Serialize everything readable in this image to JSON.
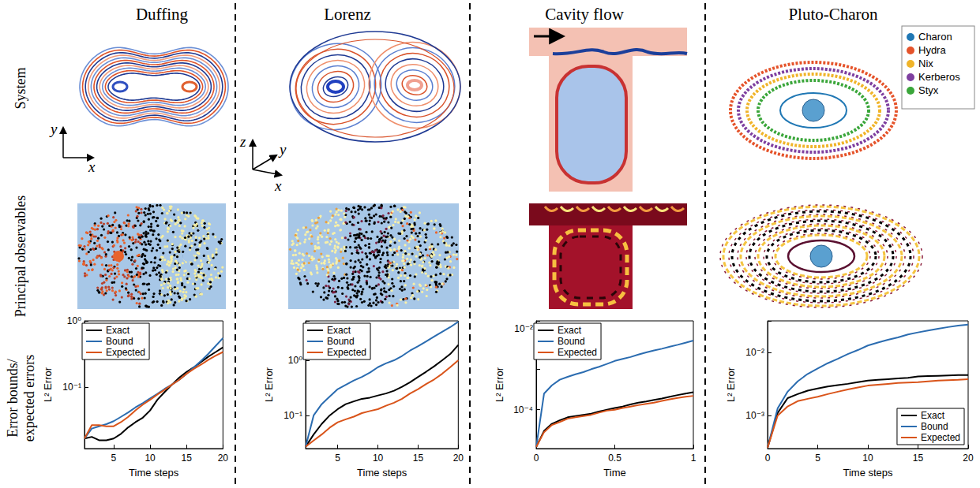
{
  "columns": [
    "Duffing",
    "Lorenz",
    "Cavity flow",
    "Pluto-Charon"
  ],
  "rows": [
    "System",
    "Principal observables",
    "Error bounds/ expected errors"
  ],
  "system_axes": {
    "Duffing": [
      "x",
      "y"
    ],
    "Lorenz": [
      "x",
      "y",
      "z"
    ]
  },
  "pluto_legend": [
    {
      "name": "Charon",
      "color": "#1f77b4"
    },
    {
      "name": "Hydra",
      "color": "#e5532a"
    },
    {
      "name": "Nix",
      "color": "#f0b429"
    },
    {
      "name": "Kerberos",
      "color": "#7e3fa0"
    },
    {
      "name": "Styx",
      "color": "#3aa63a"
    }
  ],
  "chart_data": [
    {
      "type": "line",
      "log": "y",
      "grid": false,
      "legend": "upper left",
      "xlabel": "Time steps",
      "ylabel": "L² Error",
      "x": [
        1,
        2,
        3,
        4,
        5,
        6,
        7,
        8,
        9,
        10,
        11,
        12,
        13,
        14,
        15,
        16,
        17,
        18,
        19,
        20
      ],
      "xlim": [
        1,
        20
      ],
      "xticks": [
        5,
        10,
        15,
        20
      ],
      "ylim": [
        0.012,
        1
      ],
      "yticks": [
        {
          "value": 0.1,
          "label": "10⁻¹"
        },
        {
          "value": 1,
          "label": "10⁰"
        }
      ],
      "series": [
        {
          "name": "Exact",
          "color": "#000000",
          "values": [
            0.017,
            0.018,
            0.016,
            0.016,
            0.017,
            0.02,
            0.025,
            0.03,
            0.035,
            0.045,
            0.065,
            0.085,
            0.11,
            0.14,
            0.17,
            0.2,
            0.24,
            0.29,
            0.34,
            0.4
          ]
        },
        {
          "name": "Bound",
          "color": "#2b6cb0",
          "values": [
            0.017,
            0.024,
            0.026,
            0.028,
            0.031,
            0.036,
            0.042,
            0.05,
            0.058,
            0.068,
            0.08,
            0.095,
            0.11,
            0.13,
            0.16,
            0.2,
            0.25,
            0.32,
            0.42,
            0.55
          ]
        },
        {
          "name": "Expected",
          "color": "#d9541a",
          "values": [
            0.017,
            0.027,
            0.027,
            0.026,
            0.026,
            0.03,
            0.036,
            0.045,
            0.055,
            0.065,
            0.078,
            0.092,
            0.11,
            0.13,
            0.16,
            0.19,
            0.22,
            0.26,
            0.3,
            0.34
          ]
        }
      ]
    },
    {
      "type": "line",
      "log": "y",
      "grid": false,
      "legend": "upper left",
      "xlabel": "Time steps",
      "ylabel": "L² Error",
      "x": [
        1,
        2,
        3,
        4,
        5,
        6,
        7,
        8,
        9,
        10,
        11,
        12,
        13,
        14,
        15,
        16,
        17,
        18,
        19,
        20
      ],
      "xlim": [
        1,
        20
      ],
      "xticks": [
        5,
        10,
        15,
        20
      ],
      "ylim": [
        0.025,
        5.2
      ],
      "yticks": [
        {
          "value": 0.1,
          "label": "10⁻¹"
        },
        {
          "value": 1,
          "label": "10⁰"
        }
      ],
      "series": [
        {
          "name": "Exact",
          "color": "#000000",
          "values": [
            0.027,
            0.045,
            0.07,
            0.1,
            0.13,
            0.16,
            0.18,
            0.2,
            0.21,
            0.23,
            0.25,
            0.28,
            0.33,
            0.4,
            0.5,
            0.62,
            0.78,
            1.0,
            1.3,
            1.9
          ]
        },
        {
          "name": "Bound",
          "color": "#2b6cb0",
          "values": [
            0.027,
            0.1,
            0.16,
            0.22,
            0.3,
            0.36,
            0.43,
            0.5,
            0.6,
            0.75,
            0.88,
            1.0,
            1.2,
            1.5,
            1.8,
            2.2,
            2.7,
            3.3,
            4.0,
            5.0
          ]
        },
        {
          "name": "Expected",
          "color": "#d9541a",
          "values": [
            0.027,
            0.035,
            0.045,
            0.06,
            0.075,
            0.085,
            0.095,
            0.11,
            0.12,
            0.13,
            0.15,
            0.17,
            0.2,
            0.25,
            0.3,
            0.37,
            0.45,
            0.57,
            0.75,
            1.0
          ]
        }
      ]
    },
    {
      "type": "line",
      "log": "y",
      "grid": false,
      "legend": "upper left",
      "xlabel": "Time",
      "ylabel": "L² Error",
      "x": [
        0,
        0.05,
        0.1,
        0.15,
        0.2,
        0.25,
        0.3,
        0.35,
        0.4,
        0.45,
        0.5,
        0.55,
        0.6,
        0.65,
        0.7,
        0.75,
        0.8,
        0.85,
        0.9,
        0.95,
        1
      ],
      "xlim": [
        0,
        1
      ],
      "xticks": [
        0,
        0.5,
        1
      ],
      "ylim": [
        1.1e-05,
        0.0156
      ],
      "yticks": [
        {
          "value": 0.0001,
          "label": "10⁻⁴"
        },
        {
          "value": 0.01,
          "label": "10⁻²"
        }
      ],
      "series": [
        {
          "name": "Exact",
          "color": "#000000",
          "values": [
            1.2e-05,
            3e-05,
            4.5e-05,
            5.5e-05,
            6.5e-05,
            7e-05,
            7.5e-05,
            8e-05,
            9e-05,
            0.0001,
            0.00011,
            0.00012,
            0.000135,
            0.00015,
            0.00016,
            0.000175,
            0.00019,
            0.00021,
            0.00023,
            0.00025,
            0.00027
          ]
        },
        {
          "name": "Bound",
          "color": "#2b6cb0",
          "values": [
            1.2e-05,
            0.00025,
            0.0004,
            0.00055,
            0.00065,
            0.00075,
            0.00085,
            0.001,
            0.00115,
            0.00135,
            0.0016,
            0.0018,
            0.002,
            0.0023,
            0.0026,
            0.0029,
            0.0032,
            0.0036,
            0.004,
            0.0045,
            0.0051
          ]
        },
        {
          "name": "Expected",
          "color": "#d9541a",
          "values": [
            1.2e-05,
            2.8e-05,
            4.2e-05,
            5e-05,
            6e-05,
            6.5e-05,
            7e-05,
            7.5e-05,
            8.5e-05,
            9.5e-05,
            0.0001,
            0.00011,
            0.00012,
            0.00013,
            0.00014,
            0.00015,
            0.000165,
            0.00018,
            0.000195,
            0.00021,
            0.00022
          ]
        }
      ]
    },
    {
      "type": "line",
      "log": "y",
      "grid": false,
      "legend": "lower right",
      "xlabel": "Time steps",
      "ylabel": "L² Error",
      "x": [
        0,
        1,
        2,
        3,
        4,
        5,
        6,
        7,
        8,
        9,
        10,
        11,
        12,
        13,
        14,
        15,
        16,
        17,
        18,
        19,
        20
      ],
      "xlim": [
        0,
        20
      ],
      "xticks": [
        0,
        5,
        10,
        15,
        20
      ],
      "ylim": [
        0.0003,
        0.032
      ],
      "yticks": [
        {
          "value": 0.001,
          "label": "10⁻³"
        },
        {
          "value": 0.01,
          "label": "10⁻²"
        }
      ],
      "series": [
        {
          "name": "Exact",
          "color": "#000000",
          "values": [
            0.00031,
            0.0011,
            0.0019,
            0.0022,
            0.0025,
            0.0027,
            0.0029,
            0.00305,
            0.0032,
            0.0034,
            0.0036,
            0.0037,
            0.0038,
            0.0039,
            0.004,
            0.0042,
            0.00425,
            0.0043,
            0.00435,
            0.0044,
            0.0044
          ]
        },
        {
          "name": "Bound",
          "color": "#2b6cb0",
          "values": [
            0.00031,
            0.0013,
            0.0024,
            0.0035,
            0.0046,
            0.0056,
            0.0068,
            0.008,
            0.0095,
            0.011,
            0.013,
            0.0145,
            0.016,
            0.0175,
            0.0195,
            0.021,
            0.0225,
            0.024,
            0.0255,
            0.027,
            0.028
          ]
        },
        {
          "name": "Expected",
          "color": "#d9541a",
          "values": [
            0.00031,
            0.001,
            0.0014,
            0.0017,
            0.00185,
            0.002,
            0.0022,
            0.0024,
            0.0026,
            0.0028,
            0.003,
            0.0031,
            0.0032,
            0.0033,
            0.00335,
            0.0034,
            0.0035,
            0.0036,
            0.00365,
            0.0037,
            0.0038
          ]
        }
      ]
    }
  ]
}
